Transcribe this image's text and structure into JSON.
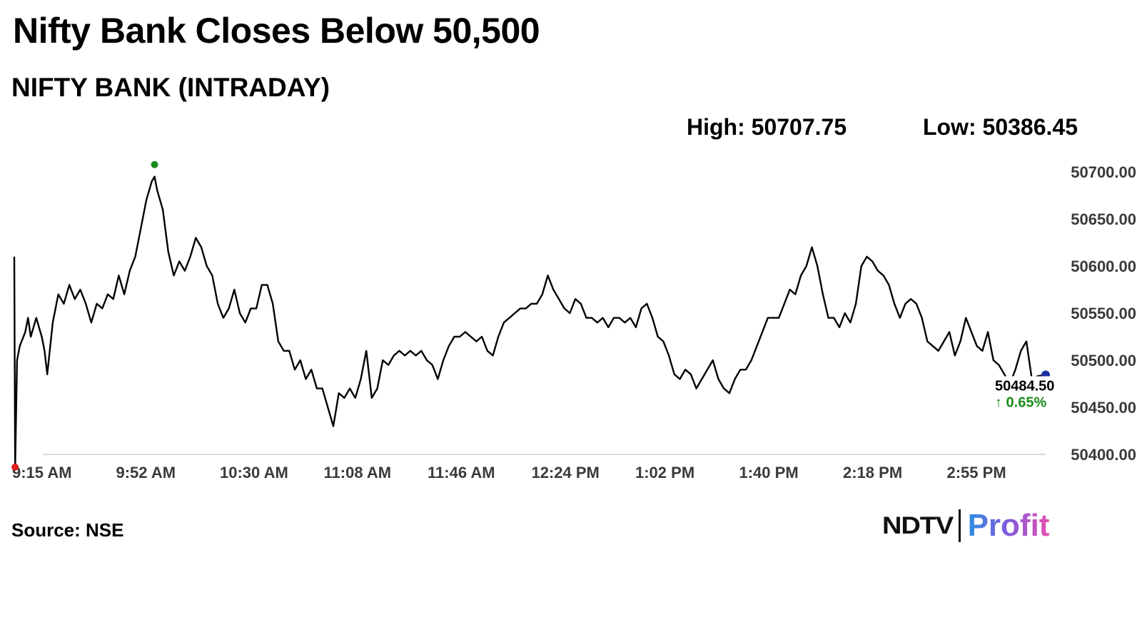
{
  "header": {
    "headline": "Nifty Bank Closes Below 50,500",
    "subtitle": "NIFTY BANK (INTRADAY)",
    "high_text": "High: 50707.75",
    "low_text": "Low: 50386.45"
  },
  "footer": {
    "source": "Source: NSE",
    "logo_ndtv": "NDTV",
    "logo_profit": "Profit"
  },
  "chart_data": {
    "type": "line",
    "title": "NIFTY BANK (INTRADAY)",
    "xlabel": "",
    "ylabel": "",
    "x_ticks": [
      "9:15 AM",
      "9:52 AM",
      "10:30 AM",
      "11:08 AM",
      "11:46 AM",
      "12:24 PM",
      "1:02 PM",
      "1:40 PM",
      "2:18 PM",
      "2:55 PM"
    ],
    "y_ticks": [
      "50400.00",
      "50450.00",
      "50500.00",
      "50550.00",
      "50600.00",
      "50650.00",
      "50700.00"
    ],
    "ylim": [
      50400,
      50700
    ],
    "x_range_minutes": [
      0,
      375
    ],
    "grid": false,
    "series": [
      {
        "color": "#000000",
        "points": [
          [
            0,
            50610
          ],
          [
            0.3,
            50385
          ],
          [
            1,
            50500
          ],
          [
            2,
            50515
          ],
          [
            4,
            50530
          ],
          [
            5,
            50545
          ],
          [
            6,
            50525
          ],
          [
            8,
            50545
          ],
          [
            10,
            50525
          ],
          [
            11,
            50510
          ],
          [
            12,
            50485
          ],
          [
            14,
            50540
          ],
          [
            16,
            50570
          ],
          [
            18,
            50560
          ],
          [
            20,
            50580
          ],
          [
            22,
            50565
          ],
          [
            24,
            50575
          ],
          [
            26,
            50560
          ],
          [
            28,
            50540
          ],
          [
            30,
            50560
          ],
          [
            32,
            50555
          ],
          [
            34,
            50570
          ],
          [
            36,
            50565
          ],
          [
            38,
            50590
          ],
          [
            40,
            50570
          ],
          [
            42,
            50595
          ],
          [
            44,
            50610
          ],
          [
            46,
            50640
          ],
          [
            48,
            50670
          ],
          [
            50,
            50690
          ],
          [
            51,
            50695
          ],
          [
            52,
            50680
          ],
          [
            54,
            50660
          ],
          [
            56,
            50615
          ],
          [
            58,
            50590
          ],
          [
            60,
            50605
          ],
          [
            62,
            50595
          ],
          [
            64,
            50610
          ],
          [
            66,
            50630
          ],
          [
            68,
            50620
          ],
          [
            70,
            50600
          ],
          [
            72,
            50590
          ],
          [
            74,
            50560
          ],
          [
            76,
            50545
          ],
          [
            78,
            50555
          ],
          [
            80,
            50575
          ],
          [
            82,
            50550
          ],
          [
            84,
            50540
          ],
          [
            86,
            50555
          ],
          [
            88,
            50555
          ],
          [
            90,
            50580
          ],
          [
            92,
            50580
          ],
          [
            94,
            50560
          ],
          [
            96,
            50520
          ],
          [
            98,
            50510
          ],
          [
            100,
            50510
          ],
          [
            102,
            50490
          ],
          [
            104,
            50500
          ],
          [
            106,
            50480
          ],
          [
            108,
            50490
          ],
          [
            110,
            50470
          ],
          [
            112,
            50470
          ],
          [
            114,
            50450
          ],
          [
            116,
            50430
          ],
          [
            118,
            50465
          ],
          [
            120,
            50460
          ],
          [
            122,
            50470
          ],
          [
            124,
            50460
          ],
          [
            126,
            50480
          ],
          [
            128,
            50510
          ],
          [
            130,
            50460
          ],
          [
            132,
            50470
          ],
          [
            134,
            50500
          ],
          [
            136,
            50495
          ],
          [
            138,
            50505
          ],
          [
            140,
            50510
          ],
          [
            142,
            50505
          ],
          [
            144,
            50510
          ],
          [
            146,
            50505
          ],
          [
            148,
            50510
          ],
          [
            150,
            50500
          ],
          [
            152,
            50495
          ],
          [
            154,
            50480
          ],
          [
            156,
            50500
          ],
          [
            158,
            50515
          ],
          [
            160,
            50525
          ],
          [
            162,
            50525
          ],
          [
            164,
            50530
          ],
          [
            166,
            50525
          ],
          [
            168,
            50520
          ],
          [
            170,
            50525
          ],
          [
            172,
            50510
          ],
          [
            174,
            50505
          ],
          [
            176,
            50525
          ],
          [
            178,
            50540
          ],
          [
            180,
            50545
          ],
          [
            182,
            50550
          ],
          [
            184,
            50555
          ],
          [
            186,
            50555
          ],
          [
            188,
            50560
          ],
          [
            190,
            50560
          ],
          [
            192,
            50570
          ],
          [
            194,
            50590
          ],
          [
            196,
            50575
          ],
          [
            198,
            50565
          ],
          [
            200,
            50555
          ],
          [
            202,
            50550
          ],
          [
            204,
            50565
          ],
          [
            206,
            50560
          ],
          [
            208,
            50545
          ],
          [
            210,
            50545
          ],
          [
            212,
            50540
          ],
          [
            214,
            50545
          ],
          [
            216,
            50535
          ],
          [
            218,
            50545
          ],
          [
            220,
            50545
          ],
          [
            222,
            50540
          ],
          [
            224,
            50545
          ],
          [
            226,
            50535
          ],
          [
            228,
            50555
          ],
          [
            230,
            50560
          ],
          [
            232,
            50545
          ],
          [
            234,
            50525
          ],
          [
            236,
            50520
          ],
          [
            238,
            50505
          ],
          [
            240,
            50485
          ],
          [
            242,
            50480
          ],
          [
            244,
            50490
          ],
          [
            246,
            50485
          ],
          [
            248,
            50470
          ],
          [
            250,
            50480
          ],
          [
            252,
            50490
          ],
          [
            254,
            50500
          ],
          [
            256,
            50480
          ],
          [
            258,
            50470
          ],
          [
            260,
            50465
          ],
          [
            262,
            50480
          ],
          [
            264,
            50490
          ],
          [
            266,
            50490
          ],
          [
            268,
            50500
          ],
          [
            270,
            50515
          ],
          [
            272,
            50530
          ],
          [
            274,
            50545
          ],
          [
            276,
            50545
          ],
          [
            278,
            50545
          ],
          [
            280,
            50560
          ],
          [
            282,
            50575
          ],
          [
            284,
            50570
          ],
          [
            286,
            50590
          ],
          [
            288,
            50600
          ],
          [
            290,
            50620
          ],
          [
            292,
            50600
          ],
          [
            294,
            50570
          ],
          [
            296,
            50545
          ],
          [
            298,
            50545
          ],
          [
            300,
            50535
          ],
          [
            302,
            50550
          ],
          [
            304,
            50540
          ],
          [
            306,
            50560
          ],
          [
            308,
            50600
          ],
          [
            310,
            50610
          ],
          [
            312,
            50605
          ],
          [
            314,
            50595
          ],
          [
            316,
            50590
          ],
          [
            318,
            50580
          ],
          [
            320,
            50560
          ],
          [
            322,
            50545
          ],
          [
            324,
            50560
          ],
          [
            326,
            50565
          ],
          [
            328,
            50560
          ],
          [
            330,
            50545
          ],
          [
            332,
            50520
          ],
          [
            334,
            50515
          ],
          [
            336,
            50510
          ],
          [
            338,
            50520
          ],
          [
            340,
            50530
          ],
          [
            342,
            50505
          ],
          [
            344,
            50520
          ],
          [
            346,
            50545
          ],
          [
            348,
            50530
          ],
          [
            350,
            50515
          ],
          [
            352,
            50510
          ],
          [
            354,
            50530
          ],
          [
            356,
            50500
          ],
          [
            358,
            50495
          ],
          [
            360,
            50485
          ],
          [
            362,
            50475
          ],
          [
            364,
            50490
          ],
          [
            366,
            50510
          ],
          [
            368,
            50520
          ],
          [
            370,
            50480
          ],
          [
            372,
            50483
          ],
          [
            374,
            50484
          ],
          [
            375,
            50484.5
          ]
        ]
      }
    ],
    "high_marker": {
      "x": 51,
      "y": 50707.75,
      "color": "#1a8c1a"
    },
    "low_marker": {
      "x": 0.3,
      "y": 50386.45,
      "color": "#e01b1b"
    },
    "last_marker": {
      "x": 375,
      "y": 50484.5,
      "color": "#1c2fa0"
    },
    "last_value_label": "50484.50",
    "change_label": "↑ 0.65%",
    "change_color": "#1a8c1a"
  }
}
